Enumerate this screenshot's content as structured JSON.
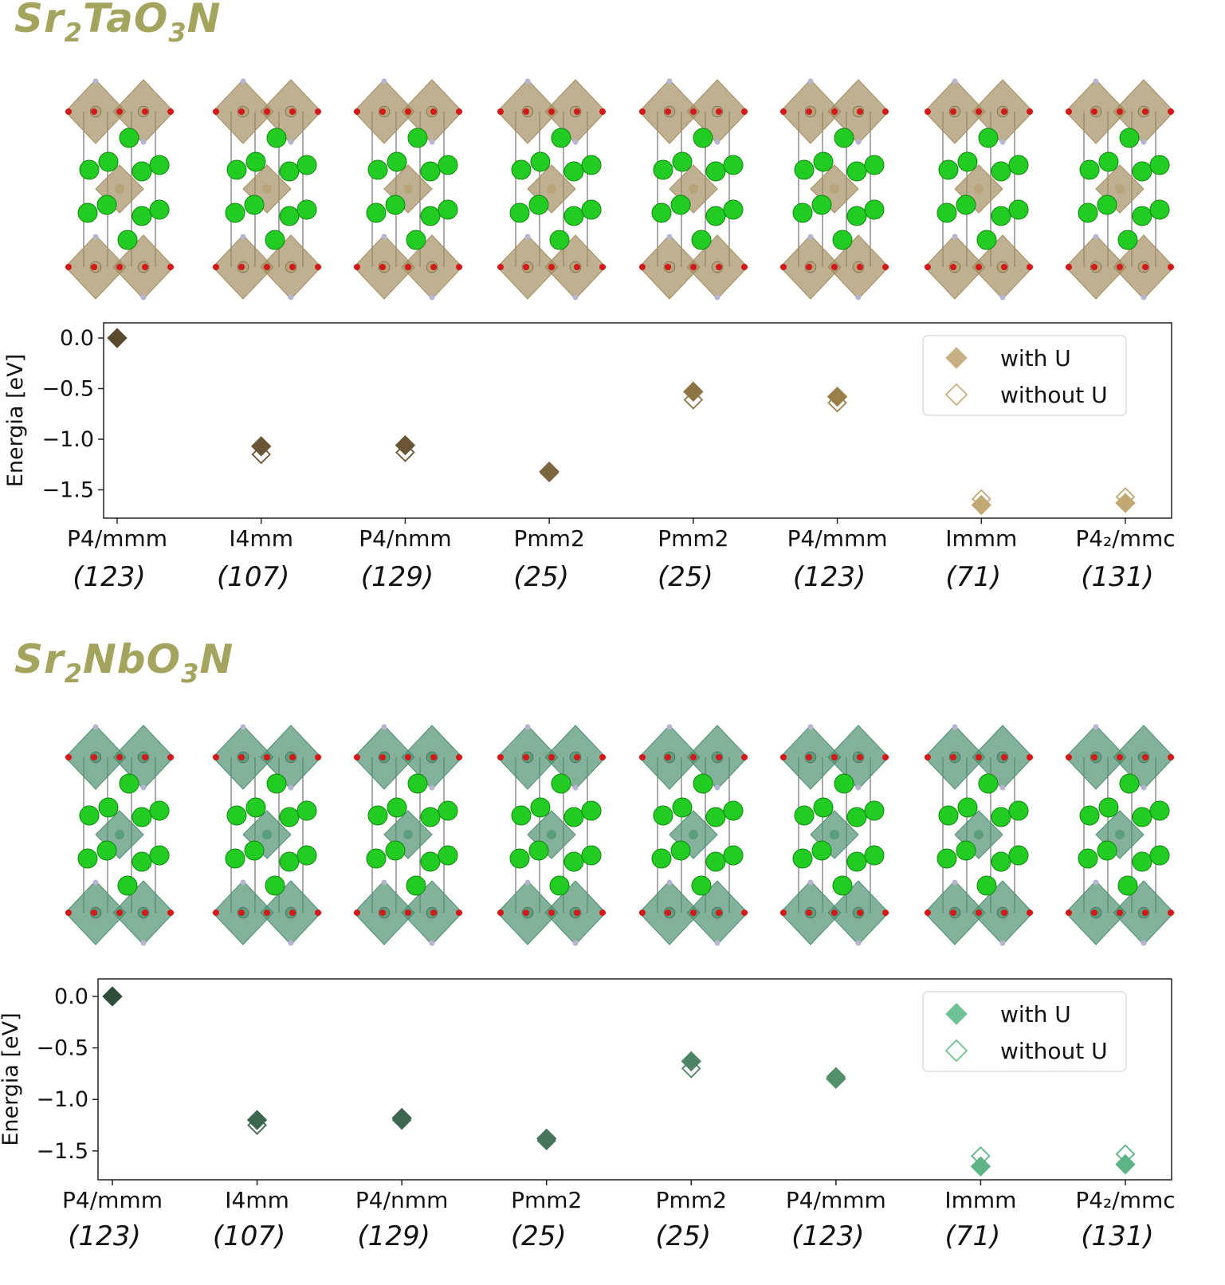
{
  "panels": [
    {
      "formula": {
        "base": "Sr",
        "s1": "2",
        "mid": "TaO",
        "s2": "3",
        "end": "N"
      },
      "colors": {
        "metal": "#b8a479",
        "octa": "#a48f62",
        "markers": [
          "#5a4a30",
          "#6a5636",
          "#6a5636",
          "#7a6540",
          "#8d7444",
          "#9a8048",
          "#c2a872",
          "#c2a872"
        ],
        "legend": "#c8b085"
      },
      "chart_data": {
        "type": "scatter",
        "categories": [
          "P4/mmm",
          "I4mm",
          "P4/nmm",
          "Pmm2",
          "Pmm2",
          "P4/mmm",
          "Immm",
          "P4₂/mmc"
        ],
        "sublabels": [
          "(123)",
          "(107)",
          "(129)",
          "(25)",
          "(25)",
          "(123)",
          "(71)",
          "(131)"
        ],
        "ylabel": "Energia [eV]",
        "yticks": [
          "0.0",
          "−0.5",
          "−1.0",
          "−1.5"
        ],
        "ylim": [
          -1.78,
          0.15
        ],
        "legend": {
          "position": "top-right",
          "entries": [
            "with U",
            "without U"
          ]
        },
        "series": [
          {
            "name": "with U",
            "values": [
              0.0,
              -1.07,
              -1.06,
              -1.32,
              -0.53,
              -0.58,
              -1.65,
              -1.63
            ]
          },
          {
            "name": "without U",
            "values": [
              0.0,
              -1.15,
              -1.13,
              -1.33,
              -0.61,
              -0.64,
              -1.59,
              -1.57
            ]
          }
        ]
      }
    },
    {
      "formula": {
        "base": "Sr",
        "s1": "2",
        "mid": "NbO",
        "s2": "3",
        "end": "N"
      },
      "colors": {
        "metal": "#5a9e7c",
        "octa": "#4f9070",
        "markers": [
          "#2f4f3c",
          "#3d6650",
          "#3d6650",
          "#46755b",
          "#4e8466",
          "#52906c",
          "#5db386",
          "#5db386"
        ],
        "legend": "#6dc193"
      },
      "chart_data": {
        "type": "scatter",
        "categories": [
          "P4/mmm",
          "I4mm",
          "P4/nmm",
          "Pmm2",
          "Pmm2",
          "P4/mmm",
          "Immm",
          "P4₂/mmc"
        ],
        "sublabels": [
          "(123)",
          "(107)",
          "(129)",
          "(25)",
          "(25)",
          "(123)",
          "(71)",
          "(131)"
        ],
        "ylabel": "Energia [eV]",
        "yticks": [
          "0.0",
          "−0.5",
          "−1.0",
          "−1.5"
        ],
        "ylim": [
          -1.78,
          0.17
        ],
        "legend": {
          "position": "top-right",
          "entries": [
            "with U",
            "without U"
          ]
        },
        "series": [
          {
            "name": "with U",
            "values": [
              0.0,
              -1.2,
              -1.18,
              -1.38,
              -0.63,
              -0.8,
              -1.65,
              -1.63
            ]
          },
          {
            "name": "without U",
            "values": [
              0.0,
              -1.25,
              -1.2,
              -1.4,
              -0.7,
              -0.78,
              -1.55,
              -1.53
            ]
          }
        ]
      }
    }
  ]
}
